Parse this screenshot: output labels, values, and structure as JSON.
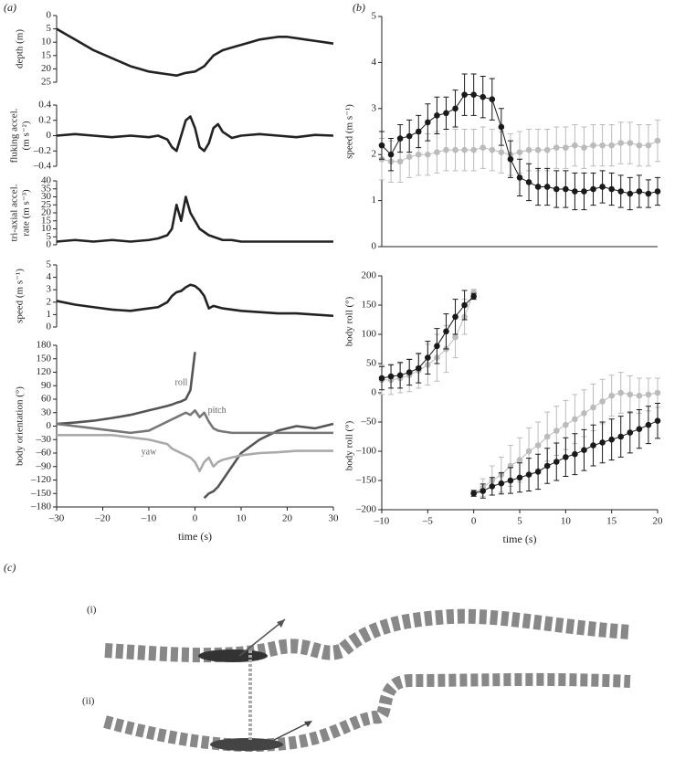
{
  "panel_labels": {
    "a": "(a)",
    "b": "(b)",
    "c": "(c)",
    "c_i": "(i)",
    "c_ii": "(ii)"
  },
  "chart_data": [
    {
      "type": "line",
      "ylabel": "depth (m)",
      "xlim": [
        -30,
        30
      ],
      "ylim": [
        25,
        0
      ],
      "yticks": [
        0,
        5,
        10,
        15,
        20,
        25
      ],
      "x": [
        -30,
        -28,
        -26,
        -24,
        -22,
        -20,
        -18,
        -16,
        -14,
        -12,
        -10,
        -8,
        -6,
        -4,
        -2,
        0,
        2,
        4,
        6,
        8,
        10,
        12,
        14,
        16,
        18,
        20,
        22,
        24,
        26,
        28,
        30
      ],
      "series": [
        {
          "color": "#222",
          "values": [
            5,
            7,
            9,
            11,
            13,
            14.5,
            16,
            17.5,
            19,
            20,
            21,
            21.5,
            22,
            22.5,
            21.5,
            21,
            19,
            15,
            13,
            12,
            11,
            10,
            9,
            8.5,
            8,
            8,
            8.5,
            9,
            9.5,
            10,
            10.5
          ]
        }
      ]
    },
    {
      "type": "line",
      "ylabel": [
        "fluking accel.",
        "(m s⁻²)"
      ],
      "xlim": [
        -30,
        30
      ],
      "ylim": [
        -0.4,
        0.4
      ],
      "yticks": [
        {
          "value": -0.4,
          "label": "–0.4"
        },
        {
          "value": -0.2,
          "label": "–0.2"
        },
        0,
        0.2,
        0.4
      ],
      "x": [
        -30,
        -26,
        -22,
        -18,
        -14,
        -10,
        -8,
        -6,
        -5,
        -4,
        -3,
        -2,
        -1,
        0,
        1,
        2,
        3,
        4,
        5,
        6,
        8,
        10,
        14,
        18,
        22,
        26,
        30
      ],
      "series": [
        {
          "color": "#222",
          "values": [
            0,
            0.02,
            0,
            -0.02,
            0,
            -0.02,
            0,
            -0.05,
            -0.15,
            -0.2,
            0,
            0.2,
            0.25,
            0.1,
            -0.15,
            -0.2,
            -0.1,
            0.1,
            0.15,
            0.05,
            -0.03,
            0,
            0.02,
            0,
            -0.02,
            0.01,
            0
          ]
        }
      ]
    },
    {
      "type": "line",
      "ylabel": [
        "tri-axial accel.",
        "rate (m s⁻³)"
      ],
      "xlim": [
        -30,
        30
      ],
      "ylim": [
        0,
        40
      ],
      "yticks": [
        0,
        5,
        10,
        15,
        20,
        25,
        30,
        35,
        40
      ],
      "x": [
        -30,
        -26,
        -22,
        -18,
        -14,
        -10,
        -8,
        -6,
        -5,
        -4,
        -3,
        -2,
        -1,
        0,
        1,
        2,
        3,
        4,
        5,
        6,
        8,
        10,
        14,
        18,
        22,
        26,
        30
      ],
      "series": [
        {
          "color": "#222",
          "values": [
            2,
            3,
            2,
            3,
            2,
            3,
            4,
            6,
            10,
            25,
            15,
            30,
            20,
            15,
            10,
            8,
            6,
            5,
            4,
            3,
            3,
            2,
            2,
            2,
            2,
            2,
            2
          ]
        }
      ]
    },
    {
      "type": "line",
      "ylabel": "speed (m s⁻¹)",
      "xlim": [
        -30,
        30
      ],
      "ylim": [
        0,
        5
      ],
      "yticks": [
        0,
        1,
        2,
        3,
        4,
        5
      ],
      "x": [
        -30,
        -26,
        -22,
        -18,
        -14,
        -10,
        -8,
        -6,
        -5,
        -4,
        -3,
        -2,
        -1,
        0,
        1,
        2,
        3,
        4,
        5,
        6,
        8,
        10,
        14,
        18,
        22,
        26,
        30
      ],
      "series": [
        {
          "color": "#222",
          "values": [
            2.1,
            1.8,
            1.6,
            1.4,
            1.3,
            1.5,
            1.6,
            2,
            2.5,
            2.8,
            2.9,
            3.2,
            3.4,
            3.3,
            3.0,
            2.5,
            1.5,
            1.7,
            1.6,
            1.5,
            1.4,
            1.3,
            1.2,
            1.1,
            1.1,
            1.0,
            0.9
          ]
        }
      ]
    },
    {
      "type": "line",
      "ylabel": "body orientation (°)",
      "xlabel": "time (s)",
      "xlim": [
        -30,
        30
      ],
      "ylim": [
        -180,
        180
      ],
      "yticks": [
        {
          "value": -180,
          "label": "–180"
        },
        {
          "value": -150,
          "label": "–150"
        },
        {
          "value": -120,
          "label": "–120"
        },
        {
          "value": -90,
          "label": "–90"
        },
        {
          "value": -60,
          "label": "–60"
        },
        {
          "value": -30,
          "label": "–30"
        },
        0,
        30,
        60,
        90,
        120,
        150,
        180
      ],
      "xticks": [
        {
          "value": -30,
          "label": "–30"
        },
        {
          "value": -20,
          "label": "–20"
        },
        {
          "value": -10,
          "label": "–10"
        },
        0,
        10,
        20,
        30
      ],
      "x": [
        -30,
        -26,
        -22,
        -18,
        -14,
        -10,
        -8,
        -6,
        -5,
        -4,
        -3,
        -2,
        -1,
        0,
        1,
        2,
        3,
        4,
        5,
        6,
        8,
        10,
        14,
        18,
        22,
        26,
        30
      ],
      "series": [
        {
          "name": "roll",
          "color": "#555",
          "values": [
            5,
            8,
            12,
            18,
            25,
            35,
            40,
            45,
            48,
            52,
            55,
            60,
            80,
            165,
            null,
            -160,
            -150,
            -145,
            -135,
            -120,
            -90,
            -60,
            -30,
            -10,
            0,
            -5,
            5
          ]
        },
        {
          "name": "pitch",
          "color": "#777",
          "values": [
            5,
            0,
            -5,
            -10,
            -15,
            -10,
            0,
            10,
            15,
            20,
            25,
            30,
            25,
            35,
            20,
            30,
            10,
            -5,
            -10,
            -12,
            -15,
            -15,
            -15,
            -15,
            -15,
            -15,
            -15
          ]
        },
        {
          "name": "yaw",
          "color": "#aaa",
          "values": [
            -20,
            -20,
            -20,
            -20,
            -25,
            -30,
            -35,
            -40,
            -50,
            -55,
            -60,
            -65,
            -70,
            -80,
            -100,
            -80,
            -70,
            -90,
            -80,
            -75,
            -70,
            -65,
            -60,
            -58,
            -55,
            -55,
            -55
          ]
        }
      ]
    },
    {
      "type": "line",
      "ylabel": "speed (m s⁻¹)",
      "xlim": [
        -10,
        20
      ],
      "ylim": [
        0,
        5
      ],
      "yticks": [
        0,
        1,
        2,
        3,
        4,
        5
      ],
      "x": [
        -10,
        -9,
        -8,
        -7,
        -6,
        -5,
        -4,
        -3,
        -2,
        -1,
        0,
        1,
        2,
        3,
        4,
        5,
        6,
        7,
        8,
        9,
        10,
        11,
        12,
        13,
        14,
        15,
        16,
        17,
        18,
        19,
        20
      ],
      "series": [
        {
          "color": "#bbb",
          "values": [
            1.9,
            1.85,
            1.85,
            1.95,
            2.0,
            2.0,
            2.05,
            2.1,
            2.1,
            2.1,
            2.1,
            2.15,
            2.1,
            2.05,
            2.0,
            2.05,
            2.1,
            2.1,
            2.1,
            2.15,
            2.15,
            2.2,
            2.15,
            2.2,
            2.2,
            2.2,
            2.25,
            2.25,
            2.2,
            2.2,
            2.3
          ],
          "errors": [
            0.45,
            0.45,
            0.45,
            0.45,
            0.45,
            0.45,
            0.45,
            0.45,
            0.45,
            0.45,
            0.45,
            0.45,
            0.45,
            0.45,
            0.45,
            0.45,
            0.45,
            0.45,
            0.45,
            0.45,
            0.45,
            0.45,
            0.45,
            0.45,
            0.45,
            0.45,
            0.45,
            0.45,
            0.45,
            0.45,
            0.45
          ]
        },
        {
          "color": "#1a1a1a",
          "values": [
            2.2,
            2.0,
            2.35,
            2.4,
            2.5,
            2.7,
            2.85,
            2.9,
            3.0,
            3.3,
            3.3,
            3.25,
            3.2,
            2.6,
            1.9,
            1.5,
            1.4,
            1.3,
            1.3,
            1.25,
            1.25,
            1.2,
            1.2,
            1.25,
            1.3,
            1.25,
            1.2,
            1.15,
            1.2,
            1.15,
            1.2
          ],
          "errors": [
            0.3,
            0.35,
            0.3,
            0.35,
            0.35,
            0.4,
            0.4,
            0.35,
            0.4,
            0.45,
            0.45,
            0.45,
            0.45,
            0.4,
            0.4,
            0.4,
            0.4,
            0.4,
            0.4,
            0.4,
            0.4,
            0.4,
            0.4,
            0.35,
            0.35,
            0.35,
            0.35,
            0.35,
            0.35,
            0.3,
            0.3
          ]
        }
      ]
    },
    {
      "type": "line",
      "ylabel": [
        "body roll (°)",
        "body roll (°)"
      ],
      "xlabel": "time (s)",
      "xlim": [
        -10,
        20
      ],
      "ylim": [
        -200,
        200
      ],
      "yticks": [
        {
          "value": -200,
          "label": "–200"
        },
        {
          "value": -150,
          "label": "–150"
        },
        {
          "value": -100,
          "label": "–100"
        },
        {
          "value": -50,
          "label": "–50"
        },
        0,
        50,
        100,
        150,
        200
      ],
      "xticks": [
        {
          "value": -10,
          "label": "–10"
        },
        {
          "value": -5,
          "label": "–5"
        },
        0,
        5,
        10,
        15,
        20
      ],
      "x": [
        -10,
        -9,
        -8,
        -7,
        -6,
        -5,
        -4,
        -3,
        -2,
        -1,
        0,
        1,
        2,
        3,
        4,
        5,
        6,
        7,
        8,
        9,
        10,
        11,
        12,
        13,
        14,
        15,
        16,
        17,
        18,
        19,
        20
      ],
      "series": [
        {
          "color": "#bbb",
          "values": [
            22,
            22,
            25,
            30,
            38,
            48,
            60,
            75,
            95,
            130,
            172,
            null,
            null,
            null,
            null,
            null,
            null,
            null,
            null,
            null,
            null,
            null,
            null,
            null,
            null,
            null,
            null,
            null,
            null,
            null,
            null
          ],
          "errors": [
            25,
            25,
            25,
            28,
            30,
            35,
            40,
            40,
            35,
            30,
            5,
            null,
            null,
            null,
            null,
            null,
            null,
            null,
            null,
            null,
            null,
            null,
            null,
            null,
            null,
            null,
            null,
            null,
            null,
            null,
            null
          ]
        },
        {
          "color": "#bbb",
          "values": [
            null,
            null,
            null,
            null,
            null,
            null,
            null,
            null,
            null,
            null,
            -172,
            -162,
            -150,
            -140,
            -125,
            -115,
            -100,
            -90,
            -75,
            -65,
            -55,
            -45,
            -35,
            -25,
            -15,
            -5,
            0,
            -3,
            -5,
            -3,
            0
          ],
          "errors": [
            null,
            null,
            null,
            null,
            null,
            null,
            null,
            null,
            null,
            null,
            5,
            15,
            25,
            30,
            35,
            38,
            40,
            40,
            42,
            42,
            42,
            42,
            40,
            40,
            38,
            35,
            35,
            32,
            30,
            28,
            25
          ]
        },
        {
          "color": "#1a1a1a",
          "values": [
            25,
            28,
            30,
            35,
            42,
            60,
            80,
            105,
            130,
            150,
            165,
            null,
            null,
            null,
            null,
            null,
            null,
            null,
            null,
            null,
            null,
            null,
            null,
            null,
            null,
            null,
            null,
            null,
            null,
            null,
            null
          ],
          "errors": [
            20,
            20,
            22,
            22,
            25,
            28,
            30,
            30,
            30,
            25,
            5,
            null,
            null,
            null,
            null,
            null,
            null,
            null,
            null,
            null,
            null,
            null,
            null,
            null,
            null,
            null,
            null,
            null,
            null,
            null,
            null
          ]
        },
        {
          "color": "#1a1a1a",
          "values": [
            null,
            null,
            null,
            null,
            null,
            null,
            null,
            null,
            null,
            null,
            -172,
            -168,
            -160,
            -155,
            -150,
            -145,
            -140,
            -135,
            -125,
            -118,
            -110,
            -105,
            -98,
            -90,
            -85,
            -80,
            -75,
            -68,
            -62,
            -55,
            -48
          ],
          "errors": [
            null,
            null,
            null,
            null,
            null,
            null,
            null,
            null,
            null,
            null,
            5,
            12,
            15,
            18,
            22,
            25,
            28,
            30,
            30,
            32,
            33,
            35,
            35,
            35,
            35,
            35,
            35,
            35,
            33,
            32,
            30
          ]
        }
      ]
    }
  ]
}
